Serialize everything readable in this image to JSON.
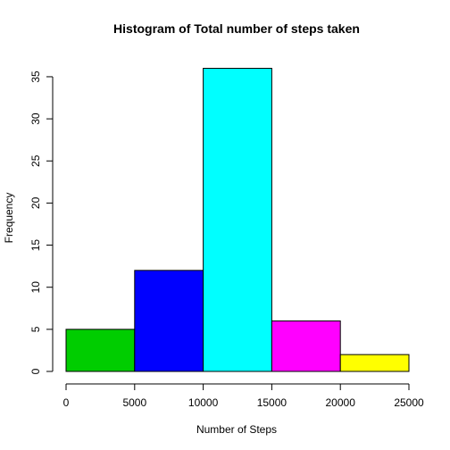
{
  "chart_data": {
    "type": "bar",
    "title": "Histogram of Total number of steps taken",
    "xlabel": "Number of Steps",
    "ylabel": "Frequency",
    "bins": [
      {
        "from": 0,
        "to": 5000,
        "value": 5,
        "color": "#00CD00"
      },
      {
        "from": 5000,
        "to": 10000,
        "value": 12,
        "color": "#0000FF"
      },
      {
        "from": 10000,
        "to": 15000,
        "value": 36,
        "color": "#00FFFF"
      },
      {
        "from": 15000,
        "to": 20000,
        "value": 6,
        "color": "#FF00FF"
      },
      {
        "from": 20000,
        "to": 25000,
        "value": 2,
        "color": "#FFFF00"
      }
    ],
    "xlim": [
      0,
      25000
    ],
    "ylim": [
      0,
      36
    ],
    "x_ticks": [
      "0",
      "5000",
      "10000",
      "15000",
      "20000",
      "25000"
    ],
    "y_ticks": [
      "0",
      "5",
      "10",
      "15",
      "20",
      "25",
      "30",
      "35"
    ],
    "grid": false,
    "legend": false
  }
}
